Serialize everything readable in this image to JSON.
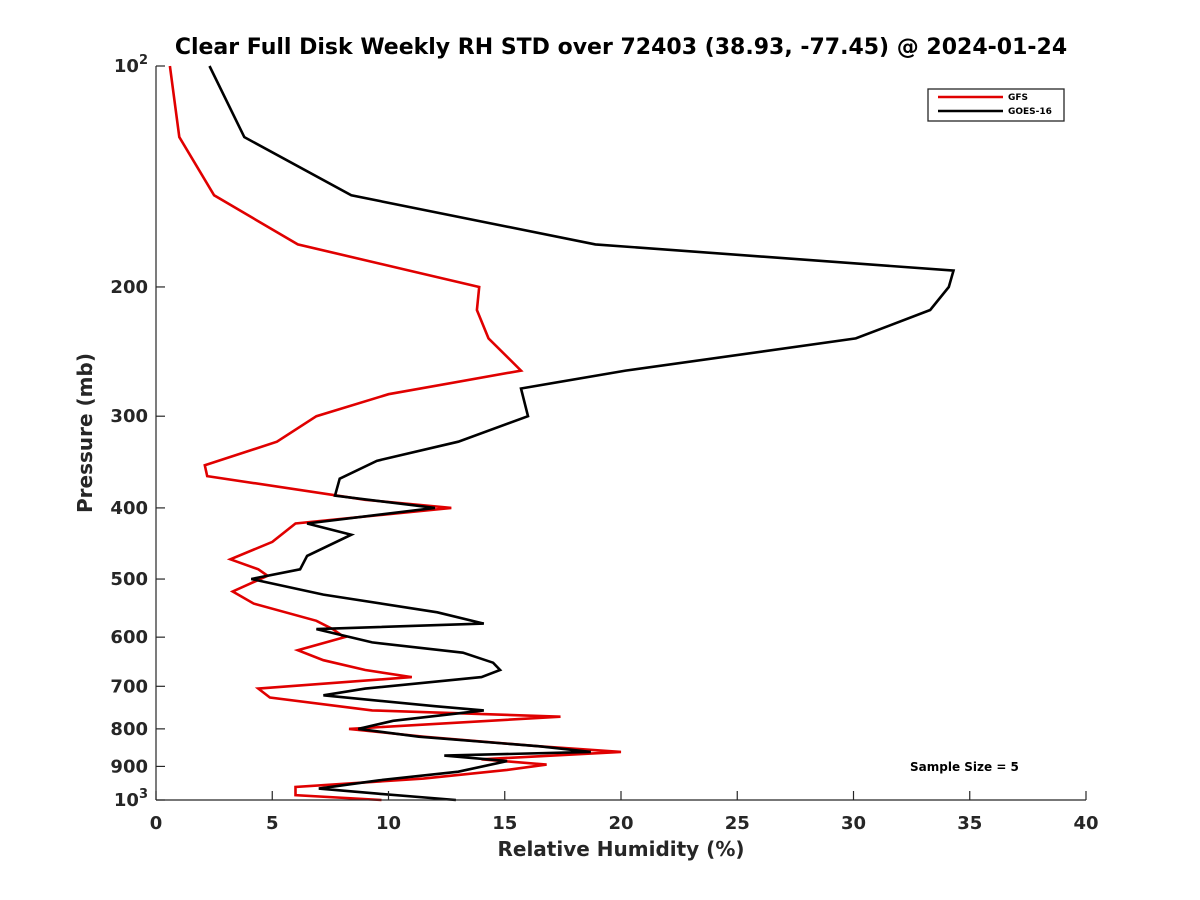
{
  "chart_data": {
    "type": "line",
    "title": "Clear Full Disk Weekly RH STD over 72403 (38.93, -77.45) @ 2024-01-24",
    "xlabel": "Relative Humidity (%)",
    "ylabel": "Pressure (mb)",
    "xlim": [
      0,
      40
    ],
    "ylim": [
      100,
      1000
    ],
    "y_scale": "log",
    "y_reversed": true,
    "grid": false,
    "legend_position": "top-right",
    "x_ticks": [
      "0",
      "5",
      "10",
      "15",
      "20",
      "25",
      "30",
      "35",
      "40"
    ],
    "y_ticks": [
      {
        "value": 100,
        "base": "10",
        "exp": "2"
      },
      {
        "value": 200,
        "base": "200",
        "exp": ""
      },
      {
        "value": 300,
        "base": "300",
        "exp": ""
      },
      {
        "value": 400,
        "base": "400",
        "exp": ""
      },
      {
        "value": 500,
        "base": "500",
        "exp": ""
      },
      {
        "value": 600,
        "base": "600",
        "exp": ""
      },
      {
        "value": 700,
        "base": "700",
        "exp": ""
      },
      {
        "value": 800,
        "base": "800",
        "exp": ""
      },
      {
        "value": 900,
        "base": "900",
        "exp": ""
      },
      {
        "value": 1000,
        "base": "10",
        "exp": "3"
      }
    ],
    "series": [
      {
        "name": "GFS",
        "color": "#e00000",
        "points": [
          [
            0.6,
            100
          ],
          [
            1.0,
            125
          ],
          [
            2.5,
            150
          ],
          [
            6.1,
            175
          ],
          [
            10.9,
            190
          ],
          [
            13.9,
            200
          ],
          [
            13.8,
            215
          ],
          [
            14.3,
            235
          ],
          [
            15.7,
            260
          ],
          [
            10.0,
            280
          ],
          [
            6.9,
            300
          ],
          [
            5.2,
            325
          ],
          [
            2.1,
            350
          ],
          [
            2.2,
            362
          ],
          [
            9.0,
            390
          ],
          [
            12.7,
            400
          ],
          [
            6.0,
            420
          ],
          [
            5.0,
            445
          ],
          [
            3.2,
            470
          ],
          [
            4.4,
            485
          ],
          [
            4.8,
            495
          ],
          [
            3.3,
            520
          ],
          [
            4.2,
            540
          ],
          [
            6.9,
            570
          ],
          [
            7.6,
            585
          ],
          [
            8.1,
            600
          ],
          [
            6.1,
            625
          ],
          [
            7.2,
            645
          ],
          [
            9.0,
            665
          ],
          [
            11.0,
            680
          ],
          [
            4.4,
            705
          ],
          [
            4.9,
            725
          ],
          [
            9.3,
            755
          ],
          [
            17.4,
            770
          ],
          [
            8.3,
            800
          ],
          [
            11.5,
            820
          ],
          [
            16.5,
            845
          ],
          [
            20.0,
            860
          ],
          [
            14.0,
            880
          ],
          [
            16.8,
            895
          ],
          [
            15.1,
            910
          ],
          [
            11.5,
            935
          ],
          [
            6.0,
            960
          ],
          [
            6.0,
            985
          ],
          [
            9.7,
            1000
          ]
        ]
      },
      {
        "name": "GOES-16",
        "color": "#000000",
        "points": [
          [
            2.3,
            100
          ],
          [
            3.8,
            125
          ],
          [
            8.4,
            150
          ],
          [
            18.9,
            175
          ],
          [
            34.3,
            190
          ],
          [
            34.1,
            200
          ],
          [
            33.3,
            215
          ],
          [
            30.1,
            235
          ],
          [
            20.2,
            260
          ],
          [
            15.7,
            275
          ],
          [
            16.0,
            300
          ],
          [
            13.0,
            325
          ],
          [
            9.5,
            345
          ],
          [
            7.9,
            365
          ],
          [
            7.7,
            385
          ],
          [
            12.0,
            400
          ],
          [
            6.5,
            420
          ],
          [
            8.4,
            435
          ],
          [
            6.5,
            465
          ],
          [
            6.2,
            485
          ],
          [
            4.1,
            500
          ],
          [
            7.2,
            525
          ],
          [
            12.1,
            555
          ],
          [
            14.1,
            575
          ],
          [
            6.9,
            585
          ],
          [
            9.3,
            610
          ],
          [
            13.2,
            630
          ],
          [
            14.5,
            650
          ],
          [
            14.8,
            665
          ],
          [
            14.0,
            680
          ],
          [
            9.0,
            705
          ],
          [
            7.2,
            720
          ],
          [
            12.0,
            745
          ],
          [
            14.1,
            755
          ],
          [
            10.2,
            780
          ],
          [
            8.7,
            800
          ],
          [
            11.3,
            820
          ],
          [
            16.5,
            845
          ],
          [
            18.7,
            860
          ],
          [
            12.4,
            870
          ],
          [
            15.1,
            885
          ],
          [
            13.0,
            915
          ],
          [
            9.6,
            940
          ],
          [
            7.0,
            965
          ],
          [
            9.5,
            980
          ],
          [
            12.9,
            1000
          ]
        ]
      }
    ],
    "annotation": "Sample Size = 5"
  }
}
